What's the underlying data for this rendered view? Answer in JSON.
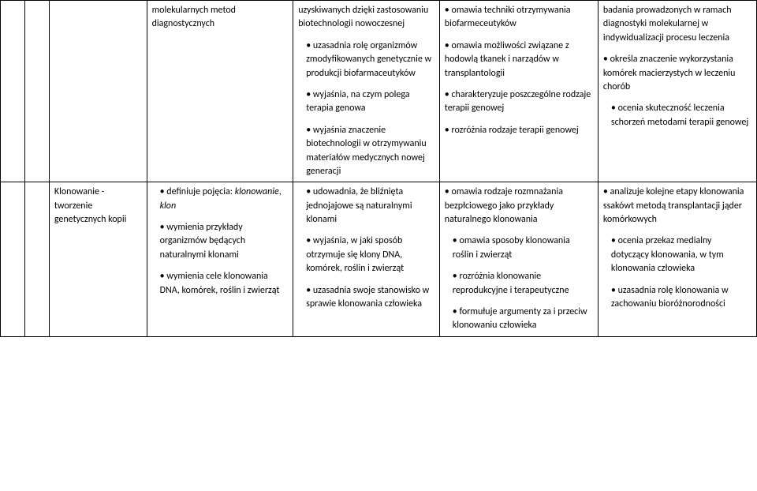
{
  "row1": {
    "colA": "",
    "colB": {
      "p1": "molekularnych metod diagnostycznych"
    },
    "colC": {
      "p1": "uzyskiwanych dzięki zastosowaniu biotechnologii nowoczesnej",
      "p2": "• uzasadnia rolę organizmów zmodyfikowanych genetycznie w produkcji biofarmaceutyków",
      "p3": "• wyjaśnia, na czym polega terapia genowa",
      "p4": "• wyjaśnia znaczenie biotechnologii w otrzymywaniu materiałów medycznych nowej generacji"
    },
    "colD": {
      "p1": "• omawia techniki otrzymywania biofarmeceutyków",
      "p2": "• omawia możliwości związane z hodowlą tkanek i narządów w transplantologii",
      "p3": "• charakteryzuje poszczególne rodzaje terapii genowej",
      "p4": "• rozróżnia rodzaje terapii genowej"
    },
    "colE": {
      "p1": "badania prowadzonych w ramach diagnostyki molekularnej w indywidualizacji procesu leczenia",
      "p2": "• określa znaczenie wykorzystania komórek macierzystych w leczeniu chorób",
      "p3": "• ocenia skuteczność leczenia schorzeń metodami terapii genowej"
    }
  },
  "row2": {
    "colA": "Klonowanie - tworzenie genetycznych kopii",
    "colB": {
      "p1a": "• definiuje pojęcia: ",
      "p1b": "klonowanie",
      "p1c": ", ",
      "p1d": "klon",
      "p2": "• wymienia przykłady organizmów będących naturalnymi klonami",
      "p3": "• wymienia cele klonowania DNA, komórek, roślin i zwierząt"
    },
    "colC": {
      "p1": "• udowadnia, że bliźnięta jednojajowe są naturalnymi klonami",
      "p2": "• wyjaśnia, w jaki sposób otrzymuje się klony DNA, komórek, roślin i zwierząt",
      "p3": "• uzasadnia swoje stanowisko w sprawie klonowania człowieka"
    },
    "colD": {
      "p1": "• omawia rodzaje rozmnażania bezpłciowego jako przykłady naturalnego klonowania",
      "p2": "• omawia sposoby klonowania roślin i zwierząt",
      "p3": "• rozróżnia klonowanie reprodukcyjne i terapeutyczne",
      "p4": "• formułuje argumenty za i przeciw klonowaniu człowieka"
    },
    "colE": {
      "p1": "• analizuje kolejne etapy klonowania ssakówt metodą transplantacji jąder komórkowych",
      "p2": "• ocenia przekaz medialny dotyczący klonowania, w tym klonowania człowieka",
      "p3": "• uzasadnia rolę klonowania w zachowaniu bioróżnorodności"
    }
  }
}
